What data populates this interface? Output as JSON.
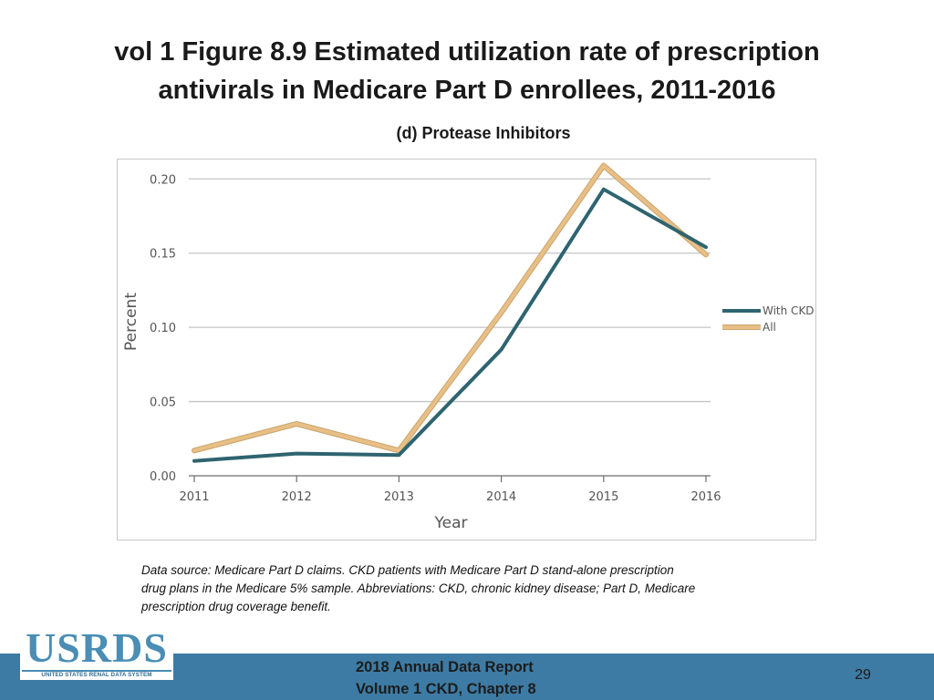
{
  "title": {
    "line1": "vol 1 Figure 8.9 Estimated utilization rate of prescription",
    "line2": "antivirals in Medicare Part D enrollees, 2011-2016"
  },
  "subtitle": "(d) Protease Inhibitors",
  "chart_data": {
    "type": "line",
    "title": "(d) Protease Inhibitors",
    "xlabel": "Year",
    "ylabel": "Percent",
    "x": [
      "2011",
      "2012",
      "2013",
      "2014",
      "2015",
      "2016"
    ],
    "yticks": [
      "0.00",
      "0.05",
      "0.10",
      "0.15",
      "0.20"
    ],
    "ylim": [
      0,
      0.21
    ],
    "grid": true,
    "legend_position": "right",
    "series": [
      {
        "name": "All",
        "color": "#e8bf86",
        "values": [
          0.017,
          0.035,
          0.017,
          0.11,
          0.209,
          0.149
        ]
      },
      {
        "name": "With CKD",
        "color": "#2e6470",
        "values": [
          0.01,
          0.015,
          0.014,
          0.085,
          0.193,
          0.154
        ]
      }
    ]
  },
  "source_note": {
    "line1": "Data source: Medicare Part D claims. CKD patients with Medicare Part D stand-alone prescription",
    "line2": "drug plans in the Medicare 5% sample. Abbreviations: CKD, chronic kidney disease; Part D, Medicare",
    "line3": "prescription drug coverage benefit."
  },
  "logo": {
    "main": "USRDS",
    "sub": "UNITED STATES RENAL DATA SYSTEM"
  },
  "footer": {
    "line1": "2018 Annual Data Report",
    "line2": "Volume 1 CKD, Chapter 8",
    "page_number": "29"
  }
}
